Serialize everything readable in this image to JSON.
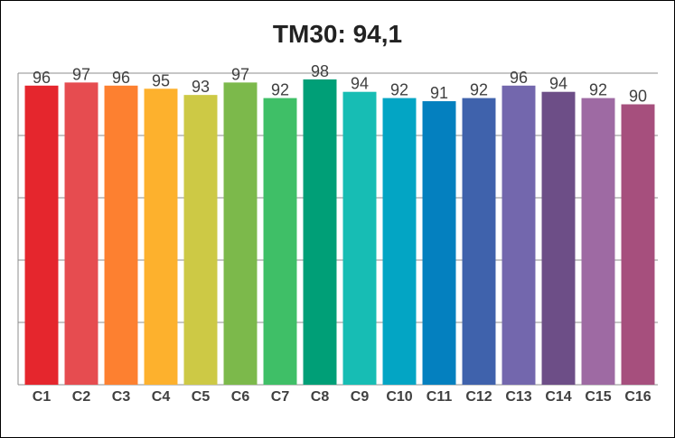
{
  "chart_data": {
    "type": "bar",
    "title": "TM30: 94,1",
    "categories": [
      "C1",
      "C2",
      "C3",
      "C4",
      "C5",
      "C6",
      "C7",
      "C8",
      "C9",
      "C10",
      "C11",
      "C12",
      "C13",
      "C14",
      "C15",
      "C16"
    ],
    "values": [
      96,
      97,
      96,
      95,
      93,
      97,
      92,
      98,
      94,
      92,
      91,
      92,
      96,
      94,
      92,
      90
    ],
    "colors": [
      "#e5262d",
      "#e64c50",
      "#fd8030",
      "#fdb12d",
      "#cdc945",
      "#7cb94b",
      "#3fbf67",
      "#009f77",
      "#17bdb4",
      "#03a5c4",
      "#0480bf",
      "#3f62ac",
      "#7367ad",
      "#6d4e87",
      "#9e6aa3",
      "#a64f7d"
    ],
    "ylim": [
      0,
      100
    ],
    "grid": true,
    "gridlines": 5,
    "data_labels": true,
    "legend": "none"
  }
}
